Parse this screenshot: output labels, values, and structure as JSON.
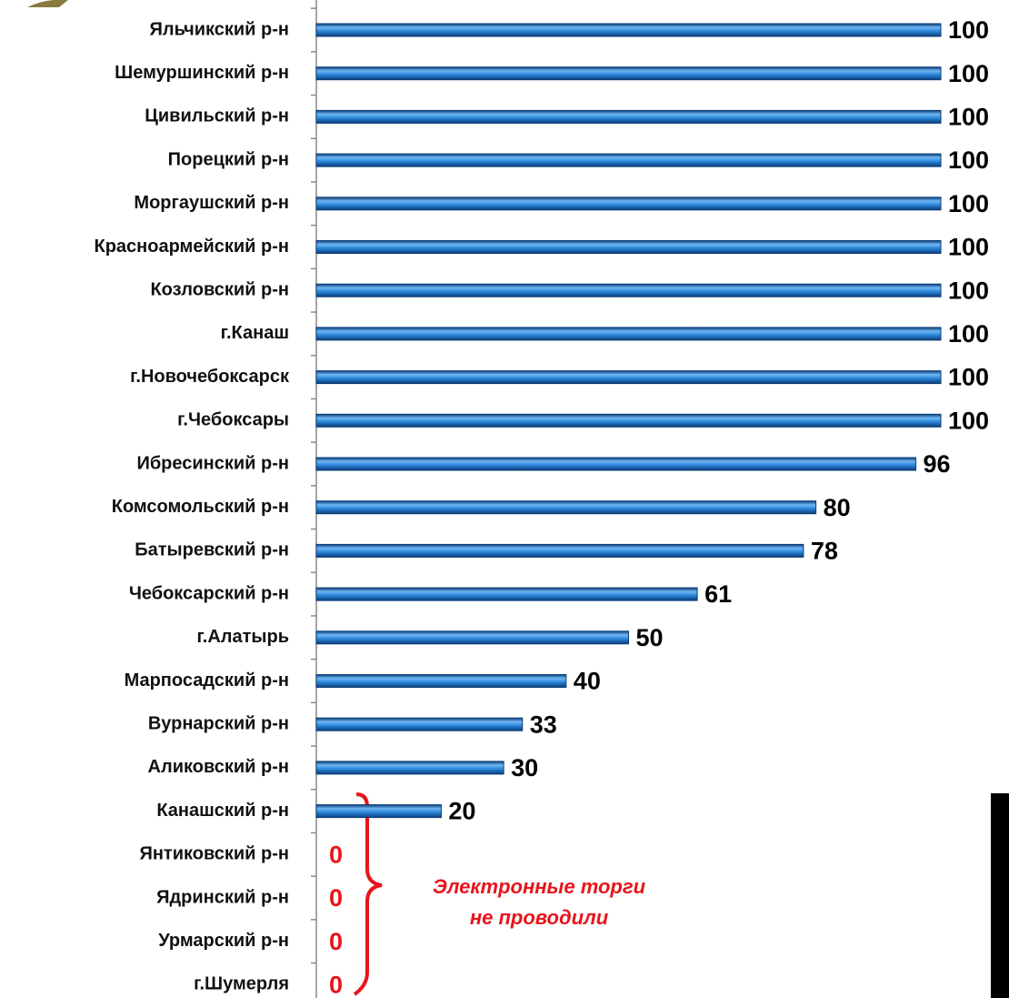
{
  "chart_data": {
    "type": "hbar",
    "categories": [
      "Яльчикский р-н",
      "Шемуршинский р-н",
      "Цивильский р-н",
      "Порецкий р-н",
      "Моргаушский р-н",
      "Красноармейский р-н",
      "Козловский р-н",
      "г.Канаш",
      "г.Новочебоксарск",
      "г.Чебоксары",
      "Ибресинский р-н",
      "Комсомольский р-н",
      "Батыревский р-н",
      "Чебоксарский р-н",
      "г.Алатырь",
      "Марпосадский р-н",
      "Вурнарский р-н",
      "Аликовский р-н",
      "Канашский р-н",
      "Янтиковский р-н",
      "Ядринский р-н",
      "Урмарский р-н",
      "г.Шумерля"
    ],
    "values": [
      100,
      100,
      100,
      100,
      100,
      100,
      100,
      100,
      100,
      100,
      96,
      80,
      78,
      61,
      50,
      40,
      33,
      30,
      20,
      0,
      0,
      0,
      0
    ],
    "color": "#1e78d0",
    "label_color": "#000000",
    "zero_label_color": "#e8141b",
    "xlim": [
      0,
      100
    ],
    "annotation": [
      "Электронные торги",
      "не проводили"
    ]
  }
}
